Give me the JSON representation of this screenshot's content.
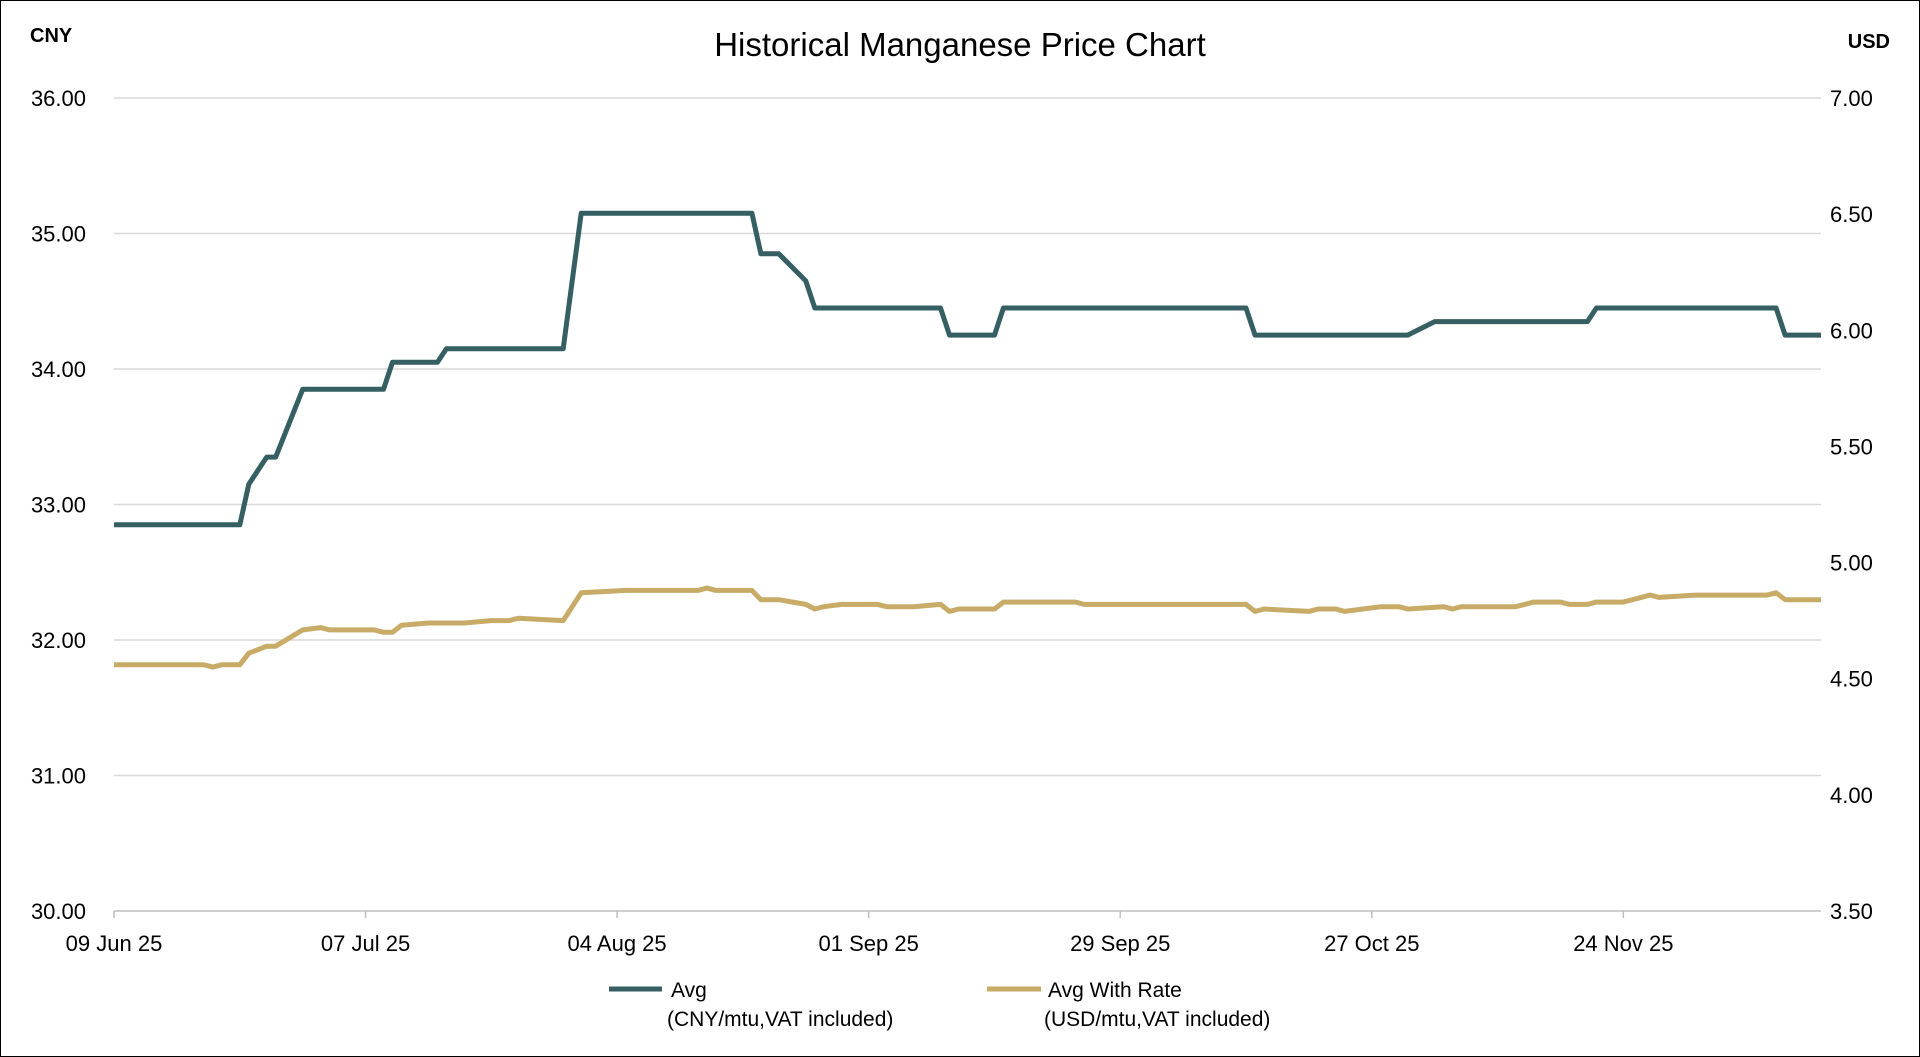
{
  "chart_data": {
    "type": "line",
    "title": "Historical Manganese Price Chart",
    "y_left_label": "CNY",
    "y_right_label": "USD",
    "y_left_range": [
      30,
      36
    ],
    "y_right_range": [
      3.5,
      7.0
    ],
    "y_left_ticks": [
      "30.00",
      "31.00",
      "32.00",
      "33.00",
      "34.00",
      "35.00",
      "36.00"
    ],
    "y_right_ticks": [
      "3.50",
      "4.00",
      "4.50",
      "5.00",
      "5.50",
      "6.00",
      "6.50",
      "7.00"
    ],
    "x_range": [
      "2025-06-09",
      "2025-12-16"
    ],
    "x_ticks": [
      {
        "date": "2025-06-09",
        "label": "09 Jun 25"
      },
      {
        "date": "2025-07-07",
        "label": "07 Jul 25"
      },
      {
        "date": "2025-08-04",
        "label": "04 Aug 25"
      },
      {
        "date": "2025-09-01",
        "label": "01 Sep 25"
      },
      {
        "date": "2025-09-29",
        "label": "29 Sep 25"
      },
      {
        "date": "2025-10-27",
        "label": "27 Oct 25"
      },
      {
        "date": "2025-11-24",
        "label": "24 Nov 25"
      }
    ],
    "grid": true,
    "legend_position": "bottom-center",
    "series": [
      {
        "name": "Avg",
        "unit": "(CNY/mtu,VAT included)",
        "axis": "left",
        "color": "#355f63",
        "points": [
          [
            "2025-06-09",
            32.85
          ],
          [
            "2025-06-23",
            32.85
          ],
          [
            "2025-06-24",
            33.15
          ],
          [
            "2025-06-26",
            33.35
          ],
          [
            "2025-06-27",
            33.35
          ],
          [
            "2025-06-30",
            33.85
          ],
          [
            "2025-07-09",
            33.85
          ],
          [
            "2025-07-10",
            34.05
          ],
          [
            "2025-07-15",
            34.05
          ],
          [
            "2025-07-16",
            34.15
          ],
          [
            "2025-07-29",
            34.15
          ],
          [
            "2025-07-31",
            35.15
          ],
          [
            "2025-08-19",
            35.15
          ],
          [
            "2025-08-20",
            34.85
          ],
          [
            "2025-08-22",
            34.85
          ],
          [
            "2025-08-25",
            34.65
          ],
          [
            "2025-08-26",
            34.45
          ],
          [
            "2025-09-09",
            34.45
          ],
          [
            "2025-09-10",
            34.25
          ],
          [
            "2025-09-15",
            34.25
          ],
          [
            "2025-09-16",
            34.45
          ],
          [
            "2025-10-13",
            34.45
          ],
          [
            "2025-10-14",
            34.25
          ],
          [
            "2025-10-31",
            34.25
          ],
          [
            "2025-11-03",
            34.35
          ],
          [
            "2025-11-20",
            34.35
          ],
          [
            "2025-11-21",
            34.45
          ],
          [
            "2025-12-11",
            34.45
          ],
          [
            "2025-12-12",
            34.25
          ],
          [
            "2025-12-16",
            34.25
          ]
        ]
      },
      {
        "name": "Avg With Rate",
        "unit": "(USD/mtu,VAT included)",
        "axis": "right",
        "color": "#c9ab68",
        "points": [
          [
            "2025-06-09",
            4.56
          ],
          [
            "2025-06-19",
            4.56
          ],
          [
            "2025-06-20",
            4.55
          ],
          [
            "2025-06-21",
            4.56
          ],
          [
            "2025-06-23",
            4.56
          ],
          [
            "2025-06-24",
            4.61
          ],
          [
            "2025-06-26",
            4.64
          ],
          [
            "2025-06-27",
            4.64
          ],
          [
            "2025-06-30",
            4.71
          ],
          [
            "2025-07-02",
            4.72
          ],
          [
            "2025-07-03",
            4.71
          ],
          [
            "2025-07-08",
            4.71
          ],
          [
            "2025-07-09",
            4.7
          ],
          [
            "2025-07-10",
            4.7
          ],
          [
            "2025-07-11",
            4.73
          ],
          [
            "2025-07-14",
            4.74
          ],
          [
            "2025-07-18",
            4.74
          ],
          [
            "2025-07-21",
            4.75
          ],
          [
            "2025-07-23",
            4.75
          ],
          [
            "2025-07-24",
            4.76
          ],
          [
            "2025-07-29",
            4.75
          ],
          [
            "2025-07-31",
            4.87
          ],
          [
            "2025-08-05",
            4.88
          ],
          [
            "2025-08-13",
            4.88
          ],
          [
            "2025-08-14",
            4.89
          ],
          [
            "2025-08-15",
            4.88
          ],
          [
            "2025-08-19",
            4.88
          ],
          [
            "2025-08-20",
            4.84
          ],
          [
            "2025-08-22",
            4.84
          ],
          [
            "2025-08-25",
            4.82
          ],
          [
            "2025-08-26",
            4.8
          ],
          [
            "2025-08-27",
            4.81
          ],
          [
            "2025-08-29",
            4.82
          ],
          [
            "2025-09-02",
            4.82
          ],
          [
            "2025-09-03",
            4.81
          ],
          [
            "2025-09-06",
            4.81
          ],
          [
            "2025-09-09",
            4.82
          ],
          [
            "2025-09-10",
            4.79
          ],
          [
            "2025-09-11",
            4.8
          ],
          [
            "2025-09-15",
            4.8
          ],
          [
            "2025-09-16",
            4.83
          ],
          [
            "2025-09-24",
            4.83
          ],
          [
            "2025-09-25",
            4.82
          ],
          [
            "2025-10-13",
            4.82
          ],
          [
            "2025-10-14",
            4.79
          ],
          [
            "2025-10-15",
            4.8
          ],
          [
            "2025-10-20",
            4.79
          ],
          [
            "2025-10-21",
            4.8
          ],
          [
            "2025-10-23",
            4.8
          ],
          [
            "2025-10-24",
            4.79
          ],
          [
            "2025-10-28",
            4.81
          ],
          [
            "2025-10-30",
            4.81
          ],
          [
            "2025-10-31",
            4.8
          ],
          [
            "2025-11-04",
            4.81
          ],
          [
            "2025-11-05",
            4.8
          ],
          [
            "2025-11-06",
            4.81
          ],
          [
            "2025-11-12",
            4.81
          ],
          [
            "2025-11-14",
            4.83
          ],
          [
            "2025-11-17",
            4.83
          ],
          [
            "2025-11-18",
            4.82
          ],
          [
            "2025-11-20",
            4.82
          ],
          [
            "2025-11-21",
            4.83
          ],
          [
            "2025-11-24",
            4.83
          ],
          [
            "2025-11-27",
            4.86
          ],
          [
            "2025-11-28",
            4.85
          ],
          [
            "2025-12-02",
            4.86
          ],
          [
            "2025-12-10",
            4.86
          ],
          [
            "2025-12-11",
            4.87
          ],
          [
            "2025-12-12",
            4.84
          ],
          [
            "2025-12-16",
            4.84
          ]
        ]
      }
    ]
  }
}
